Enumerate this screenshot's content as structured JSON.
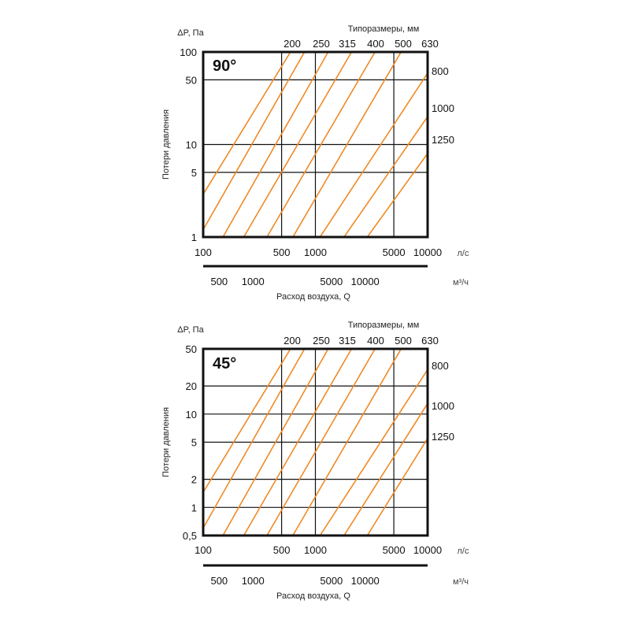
{
  "colors": {
    "series": "#f08a24",
    "frame": "#111111",
    "grid": "#111111"
  },
  "chart_data": [
    {
      "type": "line",
      "angle_label": "90°",
      "ylabel": "Потери давления",
      "ylabel_top": "ΔP, Па",
      "top_axis_title": "Типоразмеры, мм",
      "xlabel": "Расход воздуха, Q",
      "x_unit": "л/с",
      "x2_unit": "м³/ч",
      "x_scale": "log",
      "y_scale": "log",
      "xlim": [
        100,
        10000
      ],
      "ylim": [
        1,
        100
      ],
      "x_ticks": [
        "100",
        "500",
        "1000",
        "5000",
        "10000"
      ],
      "x2_ticks": [
        "500",
        "1000",
        "5000",
        "10000"
      ],
      "y_ticks": [
        "1",
        "5",
        "10",
        "50",
        "100"
      ],
      "grid_x": [
        500,
        1000,
        5000
      ],
      "grid_y": [
        5,
        10,
        50
      ],
      "series": [
        {
          "name": "200",
          "points": [
            [
              100,
              2.9
            ],
            [
              600,
              100
            ]
          ]
        },
        {
          "name": "250",
          "points": [
            [
              100,
              1.2
            ],
            [
              800,
              100
            ]
          ]
        },
        {
          "name": "315",
          "points": [
            [
              150,
              1
            ],
            [
              1300,
              100
            ]
          ]
        },
        {
          "name": "400",
          "points": [
            [
              230,
              1
            ],
            [
              2100,
              100
            ]
          ]
        },
        {
          "name": "500",
          "points": [
            [
              370,
              1
            ],
            [
              3400,
              100
            ]
          ]
        },
        {
          "name": "630",
          "points": [
            [
              630,
              1
            ],
            [
              5800,
              100
            ]
          ]
        },
        {
          "name": "800",
          "points": [
            [
              1100,
              1
            ],
            [
              10000,
              59
            ]
          ]
        },
        {
          "name": "1000",
          "points": [
            [
              1800,
              1
            ],
            [
              10000,
              20
            ]
          ]
        },
        {
          "name": "1250",
          "points": [
            [
              2900,
              1
            ],
            [
              10000,
              8
            ]
          ]
        }
      ]
    },
    {
      "type": "line",
      "angle_label": "45°",
      "ylabel": "Потери давления",
      "ylabel_top": "ΔP, Па",
      "top_axis_title": "Типоразмеры, мм",
      "xlabel": "Расход воздуха, Q",
      "x_unit": "л/с",
      "x2_unit": "м³/ч",
      "x_scale": "log",
      "y_scale": "log",
      "xlim": [
        100,
        10000
      ],
      "ylim": [
        0.5,
        50
      ],
      "x_ticks": [
        "100",
        "500",
        "1000",
        "5000",
        "10000"
      ],
      "x2_ticks": [
        "500",
        "1000",
        "5000",
        "10000"
      ],
      "y_ticks": [
        "0,5",
        "1",
        "2",
        "5",
        "10",
        "20",
        "50"
      ],
      "grid_x": [
        500,
        1000,
        5000
      ],
      "grid_y": [
        1,
        2,
        5,
        10,
        20
      ],
      "series": [
        {
          "name": "200",
          "points": [
            [
              100,
              1.45
            ],
            [
              600,
              50
            ]
          ]
        },
        {
          "name": "250",
          "points": [
            [
              100,
              0.6
            ],
            [
              800,
              50
            ]
          ]
        },
        {
          "name": "315",
          "points": [
            [
              150,
              0.5
            ],
            [
              1300,
              50
            ]
          ]
        },
        {
          "name": "400",
          "points": [
            [
              230,
              0.5
            ],
            [
              2100,
              50
            ]
          ]
        },
        {
          "name": "500",
          "points": [
            [
              370,
              0.5
            ],
            [
              3400,
              50
            ]
          ]
        },
        {
          "name": "630",
          "points": [
            [
              630,
              0.5
            ],
            [
              5800,
              50
            ]
          ]
        },
        {
          "name": "800",
          "points": [
            [
              1100,
              0.5
            ],
            [
              10000,
              30
            ]
          ]
        },
        {
          "name": "1000",
          "points": [
            [
              1800,
              0.5
            ],
            [
              10000,
              13
            ]
          ]
        },
        {
          "name": "1250",
          "points": [
            [
              2900,
              0.5
            ],
            [
              10000,
              5.5
            ]
          ]
        }
      ]
    }
  ]
}
